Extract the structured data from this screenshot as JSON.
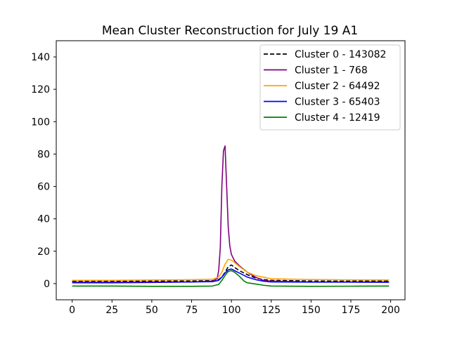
{
  "chart_data": {
    "type": "line",
    "title": "Mean Cluster Reconstruction for July 19 A1",
    "xlabel": "",
    "ylabel": "",
    "xlim": [
      -10,
      209
    ],
    "ylim": [
      -10,
      150
    ],
    "x_ticks": [
      0,
      25,
      50,
      75,
      100,
      125,
      150,
      175,
      200
    ],
    "y_ticks": [
      0,
      20,
      40,
      60,
      80,
      100,
      120,
      140
    ],
    "grid": false,
    "legend_position": "top-right",
    "series": [
      {
        "name": "Cluster 0 - 143082",
        "color": "#000000",
        "dashed": true,
        "x": [
          0,
          25,
          50,
          75,
          88,
          92,
          94,
          96,
          98,
          100,
          102,
          105,
          110,
          115,
          120,
          125,
          150,
          175,
          199
        ],
        "y": [
          1.5,
          1.5,
          1.5,
          1.6,
          1.8,
          2.5,
          4,
          7,
          10.5,
          11.5,
          10,
          8,
          5.5,
          3.5,
          2.5,
          2,
          1.6,
          1.5,
          1.5
        ]
      },
      {
        "name": "Cluster 1 - 768",
        "color": "#800080",
        "dashed": false,
        "x": [
          0,
          25,
          50,
          75,
          88,
          91,
          92,
          93,
          94,
          95,
          96,
          97,
          98,
          99,
          100,
          102,
          105,
          110,
          115,
          120,
          125,
          150,
          175,
          199
        ],
        "y": [
          0.5,
          0.5,
          0.7,
          1,
          1.5,
          3,
          8,
          22,
          60,
          82,
          85,
          60,
          35,
          23,
          18,
          14,
          11,
          7,
          4,
          2,
          1.5,
          1,
          1,
          1
        ]
      },
      {
        "name": "Cluster 2 - 64492",
        "color": "#ffa500",
        "dashed": false,
        "x": [
          0,
          25,
          50,
          75,
          88,
          92,
          94,
          96,
          98,
          100,
          102,
          105,
          110,
          115,
          120,
          125,
          150,
          175,
          199
        ],
        "y": [
          2,
          2,
          2.2,
          2.4,
          2.7,
          4,
          7,
          12,
          15,
          14.5,
          13,
          10.5,
          7,
          5,
          4,
          3,
          2.5,
          2.3,
          2.2
        ]
      },
      {
        "name": "Cluster 3 - 65403",
        "color": "#0000ff",
        "dashed": false,
        "x": [
          0,
          25,
          50,
          75,
          88,
          92,
          94,
          96,
          98,
          100,
          102,
          105,
          110,
          115,
          120,
          125,
          150,
          175,
          199
        ],
        "y": [
          0.8,
          0.8,
          0.9,
          1,
          1.2,
          2,
          4,
          6.5,
          8.5,
          9,
          8,
          6.5,
          4,
          2.5,
          1.5,
          1,
          0.9,
          0.9,
          0.8
        ]
      },
      {
        "name": "Cluster 4 - 12419",
        "color": "#008000",
        "dashed": false,
        "x": [
          0,
          25,
          50,
          75,
          88,
          92,
          94,
          96,
          98,
          100,
          102,
          105,
          108,
          110,
          115,
          120,
          125,
          150,
          175,
          199
        ],
        "y": [
          -1.5,
          -1.5,
          -1.7,
          -1.7,
          -1.5,
          -0.5,
          2,
          5,
          7.5,
          8,
          7,
          4.5,
          1.5,
          0.5,
          -0.2,
          -1,
          -1.5,
          -1.7,
          -1.6,
          -1.5
        ]
      }
    ]
  }
}
